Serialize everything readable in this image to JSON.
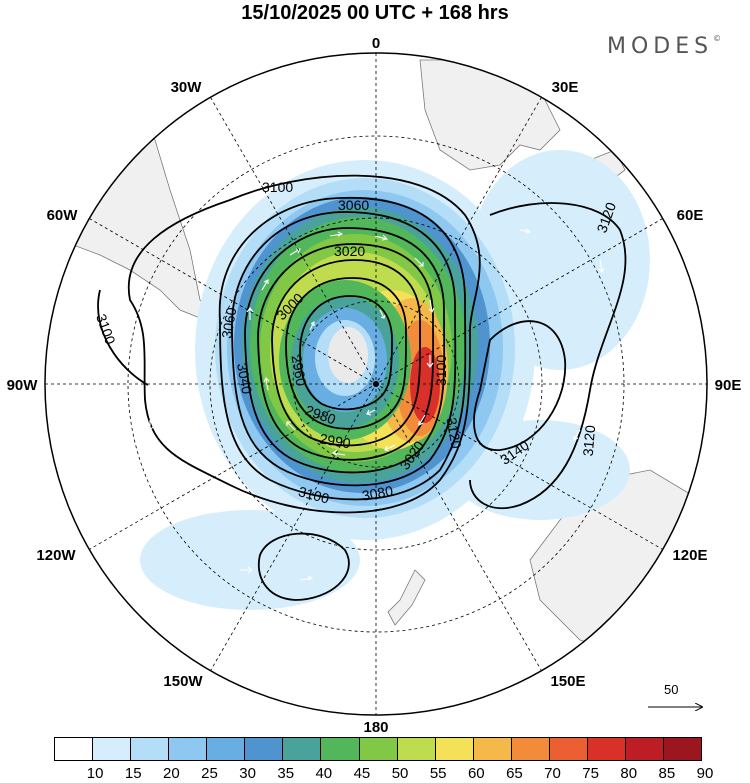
{
  "title": "15/10/2025  00 UTC  + 168 hrs",
  "brand": "MODES",
  "brand_mark": "©",
  "longitude_labels": {
    "lon_0": "0",
    "lon_30e": "30E",
    "lon_60e": "60E",
    "lon_90e": "90E",
    "lon_120e": "120E",
    "lon_150e": "150E",
    "lon_180": "180",
    "lon_150w": "150W",
    "lon_120w": "120W",
    "lon_90w": "90W",
    "lon_60w": "60W",
    "lon_30w": "30W"
  },
  "contour_labels": [
    {
      "text": "3100"
    },
    {
      "text": "3060"
    },
    {
      "text": "3020"
    },
    {
      "text": "3120"
    },
    {
      "text": "3100"
    },
    {
      "text": "3060"
    },
    {
      "text": "3000"
    },
    {
      "text": "3040"
    },
    {
      "text": "2960"
    },
    {
      "text": "2980"
    },
    {
      "text": "2990"
    },
    {
      "text": "3020"
    },
    {
      "text": "3100"
    },
    {
      "text": "3120"
    },
    {
      "text": "3140"
    },
    {
      "text": "3120"
    },
    {
      "text": "3080"
    },
    {
      "text": "3100"
    }
  ],
  "wind_scale": {
    "value": "50"
  },
  "colorbar": {
    "colors": [
      "#ffffff",
      "#d6eefc",
      "#b4def8",
      "#8ec8f0",
      "#69aee2",
      "#4f93cf",
      "#4aa39a",
      "#52b65a",
      "#80c846",
      "#bfdc4e",
      "#f4e158",
      "#f5b94a",
      "#f28c3a",
      "#eb5f32",
      "#d9302a",
      "#bd1e26",
      "#9c1620"
    ],
    "ticks": [
      "10",
      "15",
      "20",
      "25",
      "30",
      "35",
      "40",
      "45",
      "50",
      "55",
      "60",
      "65",
      "70",
      "75",
      "80",
      "85",
      "90"
    ]
  }
}
